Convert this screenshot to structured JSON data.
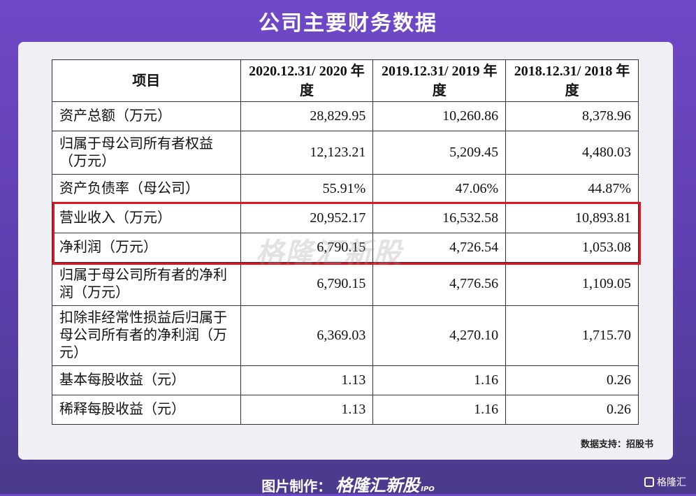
{
  "title": "公司主要财务数据",
  "table": {
    "headers": [
      "项目",
      "2020.12.31/ 2020 年度",
      "2019.12.31/ 2019 年度",
      "2018.12.31/ 2018 年度"
    ],
    "rows": [
      {
        "label": "资产总额（万元）",
        "v2020": "28,829.95",
        "v2019": "10,260.86",
        "v2018": "8,378.96"
      },
      {
        "label": "归属于母公司所有者权益（万元）",
        "v2020": "12,123.21",
        "v2019": "5,209.45",
        "v2018": "4,480.03"
      },
      {
        "label": "资产负债率（母公司）",
        "v2020": "55.91%",
        "v2019": "47.06%",
        "v2018": "44.87%"
      },
      {
        "label": "营业收入（万元）",
        "v2020": "20,952.17",
        "v2019": "16,532.58",
        "v2018": "10,893.81"
      },
      {
        "label": "净利润（万元）",
        "v2020": "6,790.15",
        "v2019": "4,726.54",
        "v2018": "1,053.08"
      },
      {
        "label": "归属于母公司所有者的净利润（万元）",
        "v2020": "6,790.15",
        "v2019": "4,776.56",
        "v2018": "1,109.05"
      },
      {
        "label": "扣除非经常性损益后归属于母公司所有者的净利润（万元）",
        "v2020": "6,369.03",
        "v2019": "4,270.10",
        "v2018": "1,715.70"
      },
      {
        "label": "基本每股收益（元）",
        "v2020": "1.13",
        "v2019": "1.16",
        "v2018": "0.26"
      },
      {
        "label": "稀释每股收益（元）",
        "v2020": "1.13",
        "v2019": "1.16",
        "v2018": "0.26"
      }
    ]
  },
  "watermark": "格隆汇新股",
  "source_note": "数据支持：招股书",
  "footer": {
    "prefix": "图片制作：",
    "brand": "格隆汇新股",
    "ipo": "IPO"
  },
  "corner_logo": "格隆汇",
  "colors": {
    "highlight": "#e0141e",
    "background": "#6f48c8"
  }
}
